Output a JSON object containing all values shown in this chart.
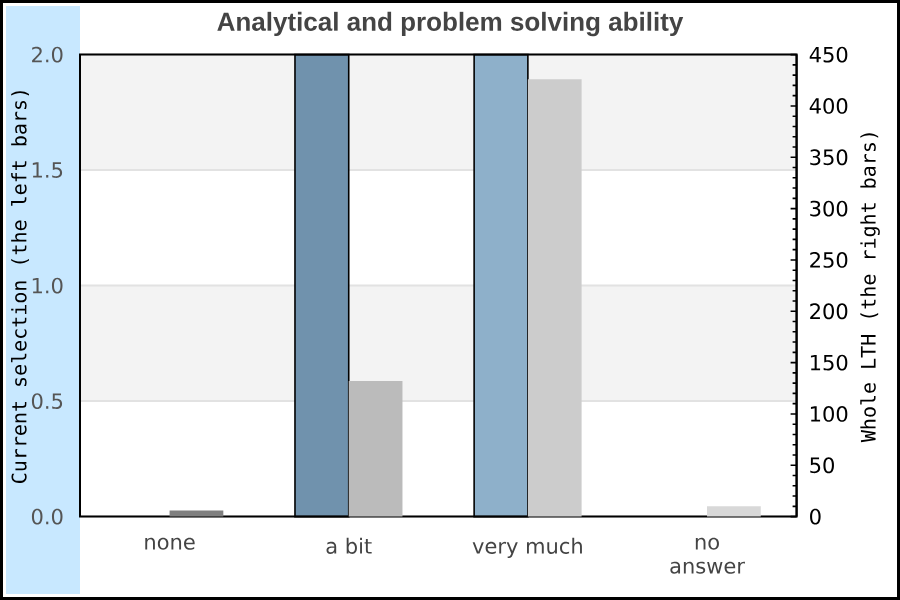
{
  "chart_data": {
    "type": "bar",
    "title": "Analytical and problem solving ability",
    "ylabel": "Current selection (the left bars)",
    "y2label": "Whole LTH (the right bars)",
    "categories": [
      "none",
      "a bit",
      "very much",
      "no\nanswer"
    ],
    "series": [
      {
        "axis": "y",
        "values": [
          0,
          2,
          2,
          0
        ],
        "colors": [
          null,
          "#7092ad",
          "#8eb0ca",
          null
        ]
      },
      {
        "axis": "y2",
        "values": [
          6,
          132,
          426,
          10
        ],
        "colors": [
          "#7f7f7f",
          "#bbbbbb",
          "#cccccc",
          "#d8d8d8"
        ]
      }
    ],
    "ylim": [
      0,
      2
    ],
    "yticks": [
      {
        "value": 0,
        "label": "0.0"
      },
      {
        "value": 0.5,
        "label": "0.5"
      },
      {
        "value": 1,
        "label": "1.0"
      },
      {
        "value": 1.5,
        "label": "1.5"
      },
      {
        "value": 2,
        "label": "2.0"
      }
    ],
    "y2lim": [
      0,
      450
    ],
    "y2ticks": [
      0,
      {
        "value": 10,
        "label": null
      },
      {
        "value": 20,
        "label": null
      },
      {
        "value": 30,
        "label": null
      },
      {
        "value": 40,
        "label": null
      },
      50,
      {
        "value": 60,
        "label": null
      },
      {
        "value": 70,
        "label": null
      },
      {
        "value": 80,
        "label": null
      },
      {
        "value": 90,
        "label": null
      },
      100,
      {
        "value": 110,
        "label": null
      },
      {
        "value": 120,
        "label": null
      },
      {
        "value": 130,
        "label": null
      },
      {
        "value": 140,
        "label": null
      },
      150,
      {
        "value": 160,
        "label": null
      },
      {
        "value": 170,
        "label": null
      },
      {
        "value": 180,
        "label": null
      },
      {
        "value": 190,
        "label": null
      },
      200,
      {
        "value": 210,
        "label": null
      },
      {
        "value": 220,
        "label": null
      },
      {
        "value": 230,
        "label": null
      },
      {
        "value": 240,
        "label": null
      },
      250,
      {
        "value": 260,
        "label": null
      },
      {
        "value": 270,
        "label": null
      },
      {
        "value": 280,
        "label": null
      },
      {
        "value": 290,
        "label": null
      },
      300,
      {
        "value": 310,
        "label": null
      },
      {
        "value": 320,
        "label": null
      },
      {
        "value": 330,
        "label": null
      },
      {
        "value": 340,
        "label": null
      },
      350,
      {
        "value": 360,
        "label": null
      },
      {
        "value": 370,
        "label": null
      },
      {
        "value": 380,
        "label": null
      },
      {
        "value": 390,
        "label": null
      },
      400,
      {
        "value": 410,
        "label": null
      },
      {
        "value": 420,
        "label": null
      },
      {
        "value": 430,
        "label": null
      },
      {
        "value": 440,
        "label": null
      },
      450
    ],
    "grid": "y",
    "bands": [
      {
        "axis": "y",
        "from": 0.5,
        "to": 1,
        "color": "#f3f3f3"
      },
      {
        "axis": "y",
        "from": 1.5,
        "to": 2,
        "color": "#f3f3f3"
      }
    ]
  }
}
